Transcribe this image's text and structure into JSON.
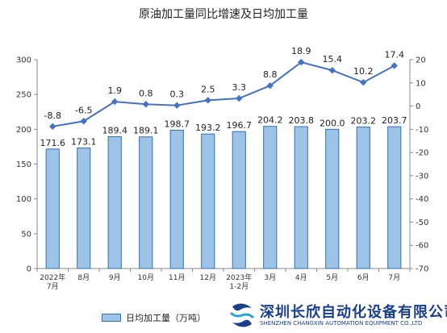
{
  "chart_data": {
    "type": "bar+line",
    "title": "原油加工量同比增速及日均加工量",
    "categories": [
      [
        "2022年",
        "7月"
      ],
      [
        "8月"
      ],
      [
        "9月"
      ],
      [
        "10月"
      ],
      [
        "11月"
      ],
      [
        "12月"
      ],
      [
        "2023年",
        "1-2月"
      ],
      [
        "3月"
      ],
      [
        "4月"
      ],
      [
        "5月"
      ],
      [
        "6月"
      ],
      [
        "7月"
      ]
    ],
    "series": [
      {
        "name": "日均加工量（万吨）",
        "kind": "bar",
        "axis": "left",
        "values": [
          171.6,
          173.1,
          189.4,
          189.1,
          198.7,
          193.2,
          196.7,
          204.2,
          203.8,
          200.0,
          203.2,
          203.7
        ],
        "labels": [
          "171.6",
          "173.1",
          "189.4",
          "189.1",
          "198.7",
          "193.2",
          "196.7",
          "204.2",
          "203.8",
          "200.0",
          "203.2",
          "203.7"
        ]
      },
      {
        "kind": "line",
        "axis": "right",
        "values": [
          -8.8,
          -6.5,
          1.9,
          0.8,
          0.3,
          2.5,
          3.3,
          8.8,
          18.9,
          15.4,
          10.2,
          17.4
        ],
        "labels": [
          "-8.8",
          "-6.5",
          "1.9",
          "0.8",
          "0.3",
          "2.5",
          "3.3",
          "8.8",
          "18.9",
          "15.4",
          "10.2",
          "17.4"
        ]
      }
    ],
    "left_axis": {
      "range": [
        0,
        300
      ],
      "ticks": [
        "0",
        "50",
        "100",
        "150",
        "200",
        "250",
        "300"
      ]
    },
    "right_axis": {
      "range": [
        -70,
        20
      ],
      "ticks": [
        "-70",
        "-60",
        "-50",
        "-40",
        "-30",
        "-20",
        "-10",
        "0",
        "10",
        "20"
      ]
    },
    "grid": false,
    "legend_position": "bottom-left",
    "colors": {
      "bar_fill": "#9dc3e6",
      "bar_stroke": "#2e74b5",
      "line": "#4472c4",
      "marker": "#4472c4"
    }
  },
  "legend": {
    "label": "日均加工量（万吨）"
  },
  "logo": {
    "name_cn": "深圳长欣自动化设备有限公司",
    "name_en": "SHENZHEN CHANGXIN AUTOMATION EQUIPMENT CO.,LTD"
  }
}
